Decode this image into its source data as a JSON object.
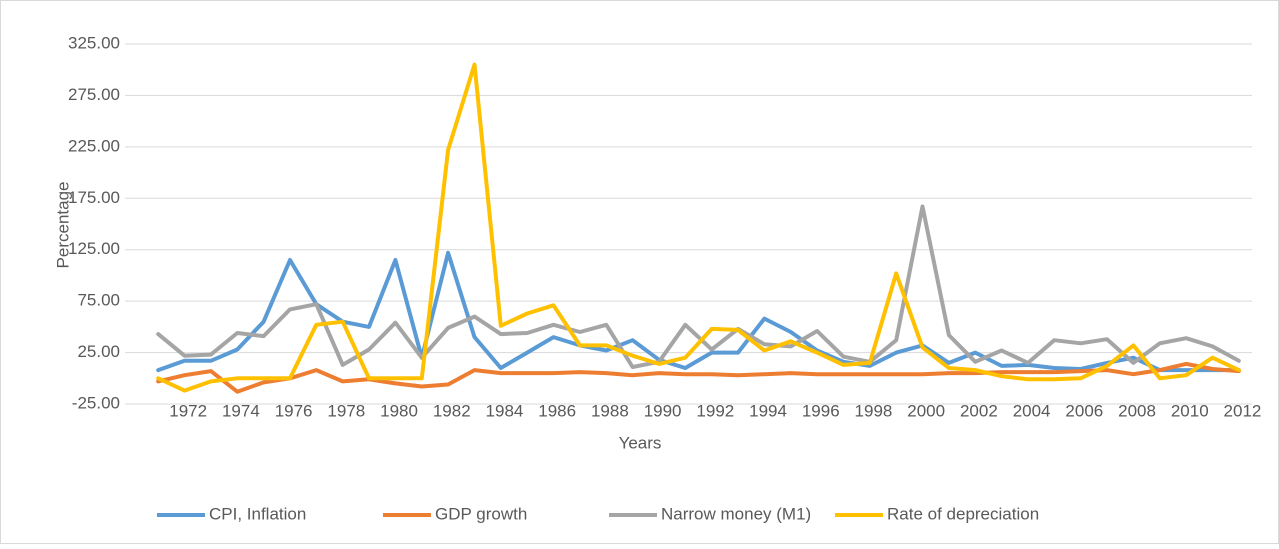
{
  "chart_data": {
    "type": "line",
    "x_label": "Years",
    "y_label": "Percentage",
    "categories": [
      "1972",
      null,
      "1974",
      null,
      "1976",
      null,
      "1978",
      null,
      "1980",
      null,
      "1982",
      null,
      "1984",
      null,
      "1986",
      null,
      "1988",
      null,
      "1990",
      null,
      "1992",
      null,
      "1994",
      null,
      "1996",
      null,
      "1998",
      null,
      "2000",
      null,
      "2002",
      null,
      "2004",
      null,
      "2006",
      null,
      "2008",
      null,
      "2010",
      null,
      "2012",
      null
    ],
    "ylim": [
      -25,
      325
    ],
    "yticks": [
      {
        "value": -25,
        "label": "-25.00"
      },
      {
        "value": 25,
        "label": "25.00"
      },
      {
        "value": 75,
        "label": "75.00"
      },
      {
        "value": 125,
        "label": "125.00"
      },
      {
        "value": 175,
        "label": "175.00"
      },
      {
        "value": 225,
        "label": "225.00"
      },
      {
        "value": 275,
        "label": "275.00"
      },
      {
        "value": 325,
        "label": "325.00"
      }
    ],
    "grid": true,
    "legend": "bottom",
    "series": [
      {
        "name": "CPI, Inflation",
        "color": "#5b9bd5",
        "values": [
          8,
          17,
          17,
          28,
          55,
          115,
          72,
          55,
          50,
          115,
          20,
          122,
          40,
          10,
          25,
          40,
          32,
          27,
          37,
          18,
          10,
          25,
          25,
          58,
          45,
          27,
          16,
          12,
          25,
          32,
          15,
          25,
          12,
          13,
          10,
          9,
          15,
          20,
          8,
          8,
          8,
          8
        ]
      },
      {
        "name": "GDP growth",
        "color": "#ed7d31",
        "values": [
          -3,
          3,
          7,
          -13,
          -4,
          0,
          8,
          -3,
          -1,
          -5,
          -8,
          -6,
          8,
          5,
          5,
          5,
          6,
          5,
          3,
          5,
          4,
          4,
          3,
          4,
          5,
          4,
          4,
          4,
          4,
          4,
          5,
          5,
          6,
          6,
          6,
          7,
          8,
          4,
          8,
          14,
          9,
          7
        ]
      },
      {
        "name": "Narrow money (M1)",
        "color": "#a5a5a5",
        "values": [
          43,
          22,
          23,
          44,
          41,
          67,
          72,
          13,
          28,
          54,
          20,
          49,
          60,
          43,
          44,
          52,
          45,
          52,
          11,
          16,
          52,
          28,
          48,
          33,
          31,
          46,
          21,
          16,
          37,
          167,
          42,
          16,
          27,
          15,
          37,
          34,
          38,
          15,
          34,
          39,
          31,
          17
        ]
      },
      {
        "name": "Rate of depreciation",
        "color": "#ffc000",
        "values": [
          0,
          -12,
          -3,
          0,
          0,
          0,
          52,
          55,
          0,
          0,
          0,
          222,
          305,
          51,
          63,
          71,
          32,
          32,
          22,
          14,
          20,
          48,
          47,
          27,
          36,
          25,
          13,
          15,
          102,
          30,
          10,
          8,
          2,
          -1,
          -1,
          0,
          12,
          32,
          0,
          3,
          20,
          8
        ]
      }
    ]
  }
}
